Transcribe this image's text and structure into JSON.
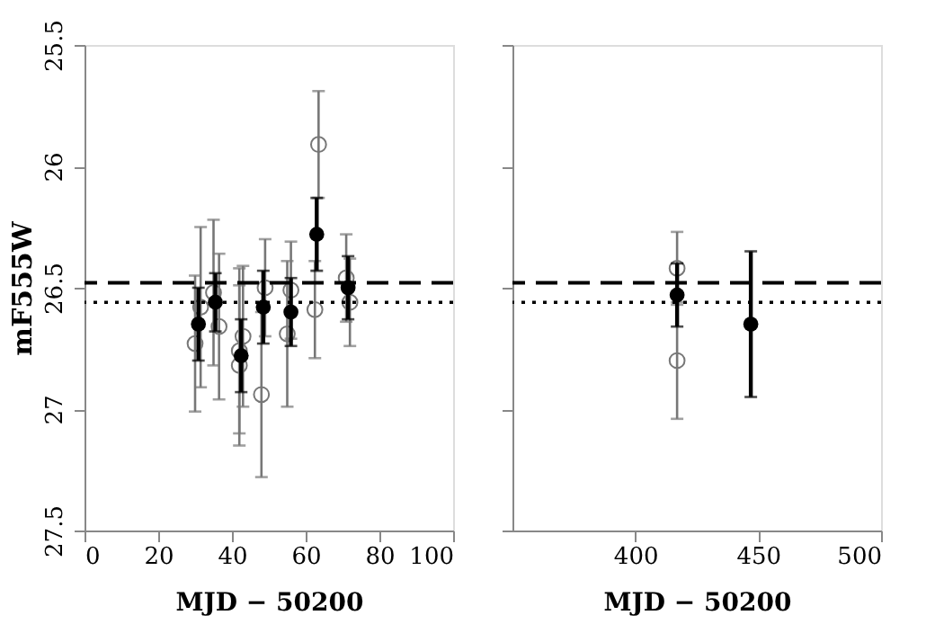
{
  "chart_data": [
    {
      "type": "scatter",
      "xlabel": "MJD − 50200",
      "ylabel": "mF555W",
      "xlim": [
        0,
        100
      ],
      "xticks": [
        0,
        20,
        40,
        60,
        80,
        100
      ],
      "ylim": [
        27.5,
        25.5
      ],
      "yticks": [
        25.5,
        26,
        26.5,
        27,
        27.5
      ],
      "grid": false,
      "marker": "circle",
      "series": [
        {
          "color": "#000000",
          "x": [
            30.9,
            35.5,
            42.5,
            48.5,
            56,
            63,
            71.5
          ],
          "values": [
            26.65,
            26.56,
            26.78,
            26.58,
            26.6,
            26.28,
            26.5
          ],
          "errors": [
            0.15,
            0.12,
            0.15,
            0.15,
            0.14,
            0.15,
            0.13
          ]
        },
        {
          "color": "#777777",
          "x": [
            30,
            31.5,
            35,
            36.5,
            42,
            42,
            43,
            48,
            49,
            55,
            56,
            62.5,
            63.5,
            71,
            72
          ],
          "values": [
            26.73,
            26.58,
            26.52,
            26.66,
            26.76,
            26.82,
            26.7,
            26.94,
            26.5,
            26.69,
            26.51,
            26.59,
            25.91,
            26.46,
            26.56
          ],
          "errors": [
            0.28,
            0.33,
            0.3,
            0.3,
            0.34,
            0.33,
            0.29,
            0.34,
            0.2,
            0.3,
            0.2,
            0.2,
            0.22,
            0.18,
            0.18
          ]
        }
      ],
      "ref_lines": [
        {
          "axis": "y",
          "value": 26.48,
          "line_style": "dashed"
        },
        {
          "axis": "y",
          "value": 26.56,
          "line_style": "dotted"
        }
      ]
    },
    {
      "type": "scatter",
      "xlabel": "MJD − 50200",
      "xlim": [
        350,
        500
      ],
      "xticks": [
        400,
        450,
        500
      ],
      "ylim": [
        27.5,
        25.5
      ],
      "yticks": [
        25.5,
        26,
        26.5,
        27,
        27.5
      ],
      "tick_labels": "x",
      "grid": false,
      "marker": "circle",
      "series": [
        {
          "color": "#000000",
          "x": [
            417,
            447
          ],
          "values": [
            26.53,
            26.65
          ],
          "errors": [
            0.13,
            0.3
          ]
        },
        {
          "color": "#777777",
          "x": [
            417,
            417
          ],
          "values": [
            26.42,
            26.8
          ],
          "errors": [
            0.15,
            0.24
          ]
        }
      ],
      "ref_lines": [
        {
          "axis": "y",
          "value": 26.48,
          "line_style": "dashed"
        },
        {
          "axis": "y",
          "value": 26.56,
          "line_style": "dotted"
        }
      ]
    }
  ]
}
